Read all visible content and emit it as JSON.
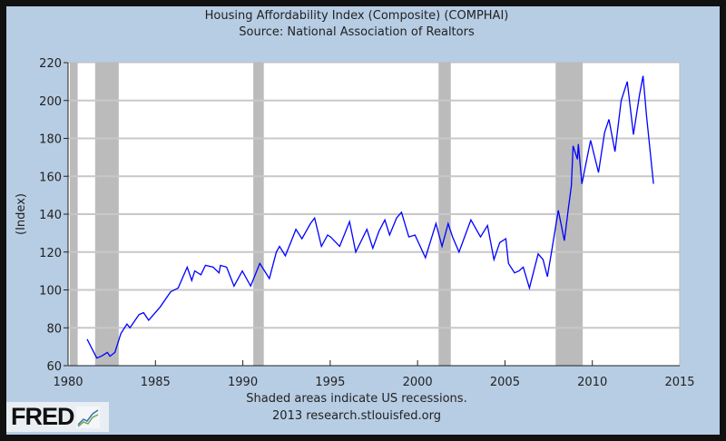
{
  "chart_data": {
    "type": "line",
    "title": "Housing Affordability Index (Composite) (COMPHAI)",
    "subtitle": "Source: National Association of Realtors",
    "xlabel": "",
    "ylabel": "(Index)",
    "xlim": [
      1980,
      2015
    ],
    "ylim": [
      60,
      220
    ],
    "xticks": [
      1980,
      1985,
      1990,
      1995,
      2000,
      2005,
      2010,
      2015
    ],
    "yticks": [
      60,
      80,
      100,
      120,
      140,
      160,
      180,
      200,
      220
    ],
    "grid": true,
    "line_color": "#0000ff",
    "recession_color": "#bbbbbb",
    "recessions": [
      [
        1980.1,
        1980.55
      ],
      [
        1981.55,
        1982.9
      ],
      [
        1990.6,
        1991.2
      ],
      [
        2001.2,
        2001.9
      ],
      [
        2007.9,
        2009.45
      ]
    ],
    "series": [
      {
        "name": "COMPHAI",
        "x": [
          1981.09,
          1981.64,
          1981.9,
          1982.25,
          1982.4,
          1982.68,
          1983.02,
          1983.37,
          1983.54,
          1984.06,
          1984.32,
          1984.61,
          1985.27,
          1985.87,
          1986.3,
          1986.82,
          1987.08,
          1987.25,
          1987.6,
          1987.86,
          1988.3,
          1988.64,
          1988.72,
          1989.07,
          1989.5,
          1989.97,
          1990.45,
          1990.97,
          1991.52,
          1991.92,
          1992.1,
          1992.43,
          1992.87,
          1993.04,
          1993.38,
          1993.87,
          1994.11,
          1994.5,
          1994.85,
          1995.02,
          1995.54,
          1996.11,
          1996.46,
          1997.1,
          1997.44,
          1997.79,
          1998.13,
          1998.4,
          1998.8,
          1999.08,
          1999.5,
          1999.85,
          2000.45,
          2001.05,
          2001.4,
          2001.75,
          2002.0,
          2002.37,
          2003.05,
          2003.6,
          2004.0,
          2004.37,
          2004.7,
          2005.05,
          2005.2,
          2005.55,
          2005.8,
          2006.05,
          2006.4,
          2006.9,
          2007.18,
          2007.43,
          2007.7,
          2008.05,
          2008.4,
          2008.63,
          2008.8,
          2008.9,
          2009.15,
          2009.2,
          2009.4,
          2009.9,
          2010.35,
          2010.7,
          2010.95,
          2011.3,
          2011.65,
          2012.0,
          2012.35,
          2012.7,
          2012.9,
          2013.1,
          2013.5
        ],
        "y": [
          74,
          64,
          65,
          67,
          65,
          67,
          77,
          82,
          80,
          87,
          88,
          84,
          91,
          99,
          101,
          112,
          105,
          110,
          108,
          113,
          112,
          109,
          113,
          112,
          102,
          110,
          102,
          114,
          106,
          120,
          123,
          118,
          128,
          132,
          127,
          135,
          138,
          123,
          129,
          128,
          123,
          136,
          120,
          132,
          122,
          131,
          137,
          129,
          138,
          141,
          128,
          129,
          117,
          135,
          123,
          135,
          128,
          120,
          137,
          128,
          134,
          116,
          125,
          127,
          114,
          109,
          110,
          112,
          101,
          119,
          116,
          107,
          122,
          142,
          126,
          143,
          155,
          176,
          169,
          177,
          156,
          179,
          162,
          183,
          190,
          173,
          200,
          210,
          182,
          203,
          213,
          192,
          156
        ]
      }
    ],
    "footnote": "Shaded areas indicate US recessions.",
    "credit": "2013 research.stlouisfed.org",
    "logo_text": "FRED"
  }
}
